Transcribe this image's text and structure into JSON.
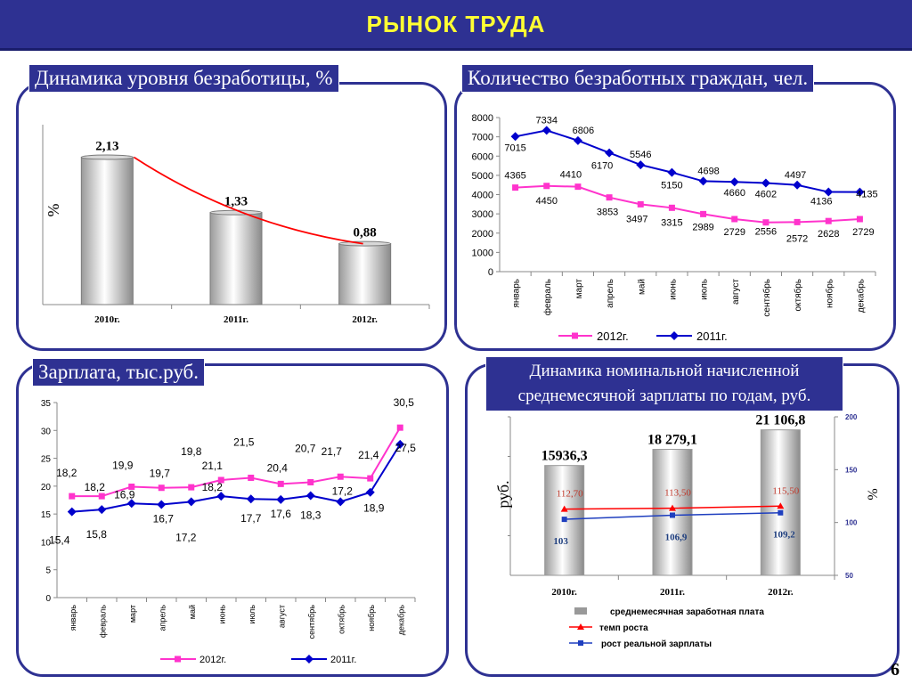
{
  "header": {
    "title": "РЫНОК  ТРУДА"
  },
  "page_number": "6",
  "colors": {
    "header_bg": "#2e3192",
    "title_text": "#ffff33",
    "series_2012": "#ff33cc",
    "series_2011": "#0000cc",
    "trend": "#ff0000"
  },
  "chart_data": [
    {
      "id": "unemployment_rate",
      "type": "bar",
      "title": "Динамика уровня безработицы, %",
      "ylabel": "%",
      "categories": [
        "2010г.",
        "2011г.",
        "2012г."
      ],
      "values": [
        2.13,
        1.33,
        0.88
      ],
      "value_labels": [
        "2,13",
        "1,33",
        "0,88"
      ],
      "ylim": [
        0,
        2.6
      ],
      "trendline": true,
      "grid": false
    },
    {
      "id": "unemployed_count",
      "type": "line",
      "title": "Количество безработных граждан, чел.",
      "categories": [
        "январь",
        "февраль",
        "март",
        "апрель",
        "май",
        "июнь",
        "июль",
        "август",
        "сентябрь",
        "октябрь",
        "ноябрь",
        "декабрь"
      ],
      "ylim": [
        0,
        8000
      ],
      "yticks": [
        "0",
        "1000",
        "2000",
        "3000",
        "4000",
        "5000",
        "6000",
        "7000",
        "8000"
      ],
      "legend": "bottom",
      "series": [
        {
          "name": "2012г.",
          "values": [
            4365,
            4450,
            4410,
            3853,
            3497,
            3315,
            2989,
            2729,
            2556,
            2572,
            2628,
            2729
          ]
        },
        {
          "name": "2011г.",
          "values": [
            7015,
            7334,
            6806,
            6170,
            5546,
            5150,
            4698,
            4660,
            4602,
            4497,
            4136,
            4135
          ]
        }
      ]
    },
    {
      "id": "salary",
      "type": "line",
      "title": "Зарплата, тыс.руб.",
      "categories": [
        "январь",
        "февраль",
        "март",
        "апрель",
        "май",
        "июнь",
        "июль",
        "август",
        "сентябрь",
        "октябрь",
        "ноябрь",
        "декабрь"
      ],
      "ylim": [
        0,
        35
      ],
      "yticks": [
        "0",
        "5",
        "10",
        "15",
        "20",
        "25",
        "30",
        "35"
      ],
      "legend": "bottom",
      "series": [
        {
          "name": "2012г.",
          "values": [
            18.2,
            18.2,
            19.9,
            19.7,
            19.8,
            21.1,
            21.5,
            20.4,
            20.7,
            21.7,
            21.4,
            30.5
          ],
          "labels": [
            "18,2",
            "18,2",
            "19,9",
            "19,7",
            "19,8",
            "21,1",
            "21,5",
            "20,4",
            "20,7",
            "21,7",
            "21,4",
            "30,5"
          ]
        },
        {
          "name": "2011г.",
          "values": [
            15.4,
            15.8,
            16.9,
            16.7,
            17.2,
            18.2,
            17.7,
            17.6,
            18.3,
            17.2,
            18.9,
            27.5
          ],
          "labels": [
            "15,4",
            "15,8",
            "16,9",
            "16,7",
            "17,2",
            "18,2",
            "17,7",
            "17,6",
            "18,3",
            "17,2",
            "18,9",
            "27,5"
          ]
        }
      ]
    },
    {
      "id": "nominal_salary",
      "type": "bar",
      "title": "Динамика номинальной начисленной среднемесячной зарплаты по годам, руб.",
      "ylabel": "руб.",
      "y2label": "%",
      "categories": [
        "2010г.",
        "2011г.",
        "2012г."
      ],
      "values": [
        15936.3,
        18279.1,
        21106.8
      ],
      "value_labels": [
        "15936,3",
        "18 279,1",
        "21 106,8"
      ],
      "ylim": [
        0,
        23000
      ],
      "y2lim": [
        50,
        200
      ],
      "y2ticks": [
        "50",
        "100",
        "150",
        "200"
      ],
      "legend": "bottom",
      "series": [
        {
          "name": "среднемесячная заработная плата",
          "kind": "bar"
        },
        {
          "name": "темп роста",
          "values": [
            112.7,
            113.5,
            115.5
          ],
          "labels": [
            "112,70",
            "113,50",
            "115,50"
          ]
        },
        {
          "name": "рост реальной зарплаты",
          "values": [
            103,
            106.9,
            109.2
          ],
          "labels": [
            "103",
            "106,9",
            "109,2"
          ]
        }
      ]
    }
  ]
}
